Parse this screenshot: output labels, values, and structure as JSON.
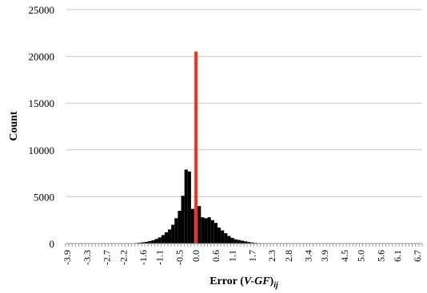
{
  "chart_data": {
    "type": "bar",
    "title": "",
    "xlabel": {
      "prefix": "Error (",
      "var": "V-GF",
      "suffix": ")",
      "sub": "ij"
    },
    "ylabel": "Count",
    "ylim": [
      0,
      25000
    ],
    "yticks": [
      0,
      5000,
      10000,
      15000,
      20000,
      25000
    ],
    "grid": true,
    "legend": "none",
    "bin_width": 0.1,
    "xticks": [
      "-3.9",
      "-3.3",
      "-2.7",
      "-2.2",
      "-1.6",
      "-1.1",
      "-0.5",
      "0.0",
      "0.6",
      "1.1",
      "1.7",
      "2.3",
      "2.8",
      "3.4",
      "3.9",
      "4.5",
      "5.0",
      "5.6",
      "6.1",
      "6.7"
    ],
    "bins": [
      {
        "x": -3.9,
        "value": 5
      },
      {
        "x": -3.8,
        "value": 5
      },
      {
        "x": -3.7,
        "value": 5
      },
      {
        "x": -3.6,
        "value": 5
      },
      {
        "x": -3.5,
        "value": 5
      },
      {
        "x": -3.4,
        "value": 5
      },
      {
        "x": -3.3,
        "value": 5
      },
      {
        "x": -3.2,
        "value": 5
      },
      {
        "x": -3.1,
        "value": 5
      },
      {
        "x": -3.0,
        "value": 5
      },
      {
        "x": -2.9,
        "value": 5
      },
      {
        "x": -2.8,
        "value": 5
      },
      {
        "x": -2.7,
        "value": 5
      },
      {
        "x": -2.6,
        "value": 5
      },
      {
        "x": -2.5,
        "value": 5
      },
      {
        "x": -2.4,
        "value": 5
      },
      {
        "x": -2.3,
        "value": 10
      },
      {
        "x": -2.2,
        "value": 15
      },
      {
        "x": -2.1,
        "value": 20
      },
      {
        "x": -2.0,
        "value": 30
      },
      {
        "x": -1.9,
        "value": 40
      },
      {
        "x": -1.8,
        "value": 60
      },
      {
        "x": -1.7,
        "value": 90
      },
      {
        "x": -1.6,
        "value": 130
      },
      {
        "x": -1.5,
        "value": 180
      },
      {
        "x": -1.4,
        "value": 250
      },
      {
        "x": -1.3,
        "value": 350
      },
      {
        "x": -1.2,
        "value": 480
      },
      {
        "x": -1.1,
        "value": 650
      },
      {
        "x": -1.0,
        "value": 900
      },
      {
        "x": -0.9,
        "value": 1200
      },
      {
        "x": -0.8,
        "value": 1500
      },
      {
        "x": -0.7,
        "value": 2000
      },
      {
        "x": -0.6,
        "value": 2700
      },
      {
        "x": -0.5,
        "value": 3500
      },
      {
        "x": -0.4,
        "value": 5100
      },
      {
        "x": -0.3,
        "value": 7900
      },
      {
        "x": -0.2,
        "value": 7700
      },
      {
        "x": -0.1,
        "value": 3700
      },
      {
        "x": 0.0,
        "value": 20500
      },
      {
        "x": 0.1,
        "value": 4000
      },
      {
        "x": 0.2,
        "value": 2800
      },
      {
        "x": 0.3,
        "value": 2700
      },
      {
        "x": 0.4,
        "value": 2800
      },
      {
        "x": 0.5,
        "value": 2500
      },
      {
        "x": 0.6,
        "value": 2200
      },
      {
        "x": 0.7,
        "value": 1700
      },
      {
        "x": 0.8,
        "value": 1400
      },
      {
        "x": 0.9,
        "value": 1100
      },
      {
        "x": 1.0,
        "value": 800
      },
      {
        "x": 1.1,
        "value": 600
      },
      {
        "x": 1.2,
        "value": 450
      },
      {
        "x": 1.3,
        "value": 380
      },
      {
        "x": 1.4,
        "value": 300
      },
      {
        "x": 1.5,
        "value": 230
      },
      {
        "x": 1.6,
        "value": 160
      },
      {
        "x": 1.7,
        "value": 110
      },
      {
        "x": 1.8,
        "value": 70
      },
      {
        "x": 1.9,
        "value": 50
      },
      {
        "x": 2.0,
        "value": 35
      },
      {
        "x": 2.1,
        "value": 25
      },
      {
        "x": 2.2,
        "value": 20
      },
      {
        "x": 2.3,
        "value": 15
      },
      {
        "x": 2.4,
        "value": 10
      },
      {
        "x": 2.5,
        "value": 8
      },
      {
        "x": 2.6,
        "value": 6
      },
      {
        "x": 2.7,
        "value": 5
      },
      {
        "x": 2.8,
        "value": 5
      },
      {
        "x": 2.9,
        "value": 5
      },
      {
        "x": 3.0,
        "value": 5
      },
      {
        "x": 3.1,
        "value": 5
      },
      {
        "x": 3.2,
        "value": 5
      },
      {
        "x": 3.3,
        "value": 5
      },
      {
        "x": 3.4,
        "value": 5
      },
      {
        "x": 3.5,
        "value": 5
      },
      {
        "x": 3.6,
        "value": 5
      },
      {
        "x": 3.7,
        "value": 5
      },
      {
        "x": 3.8,
        "value": 5
      },
      {
        "x": 3.9,
        "value": 5
      },
      {
        "x": 4.0,
        "value": 5
      },
      {
        "x": 4.1,
        "value": 5
      },
      {
        "x": 4.2,
        "value": 5
      },
      {
        "x": 4.3,
        "value": 5
      },
      {
        "x": 4.4,
        "value": 5
      },
      {
        "x": 4.5,
        "value": 5
      },
      {
        "x": 4.6,
        "value": 5
      },
      {
        "x": 4.7,
        "value": 5
      },
      {
        "x": 4.8,
        "value": 5
      },
      {
        "x": 4.9,
        "value": 5
      },
      {
        "x": 5.0,
        "value": 5
      },
      {
        "x": 5.1,
        "value": 5
      },
      {
        "x": 5.2,
        "value": 5
      },
      {
        "x": 5.3,
        "value": 5
      },
      {
        "x": 5.4,
        "value": 5
      },
      {
        "x": 5.5,
        "value": 5
      },
      {
        "x": 5.6,
        "value": 5
      },
      {
        "x": 5.7,
        "value": 5
      },
      {
        "x": 5.8,
        "value": 5
      },
      {
        "x": 5.9,
        "value": 5
      },
      {
        "x": 6.0,
        "value": 5
      },
      {
        "x": 6.1,
        "value": 5
      },
      {
        "x": 6.2,
        "value": 5
      },
      {
        "x": 6.3,
        "value": 5
      },
      {
        "x": 6.4,
        "value": 5
      },
      {
        "x": 6.5,
        "value": 5
      },
      {
        "x": 6.6,
        "value": 5
      },
      {
        "x": 6.7,
        "value": 5
      },
      {
        "x": 6.8,
        "value": 5
      }
    ],
    "highlight": {
      "x": 0.0,
      "value": 20500,
      "color": "#ff2a12"
    },
    "colors": {
      "bars": "#000000",
      "highlight": "#ff2a12",
      "grid": "#c8c8c8",
      "axis": "#8c8c8c"
    }
  }
}
